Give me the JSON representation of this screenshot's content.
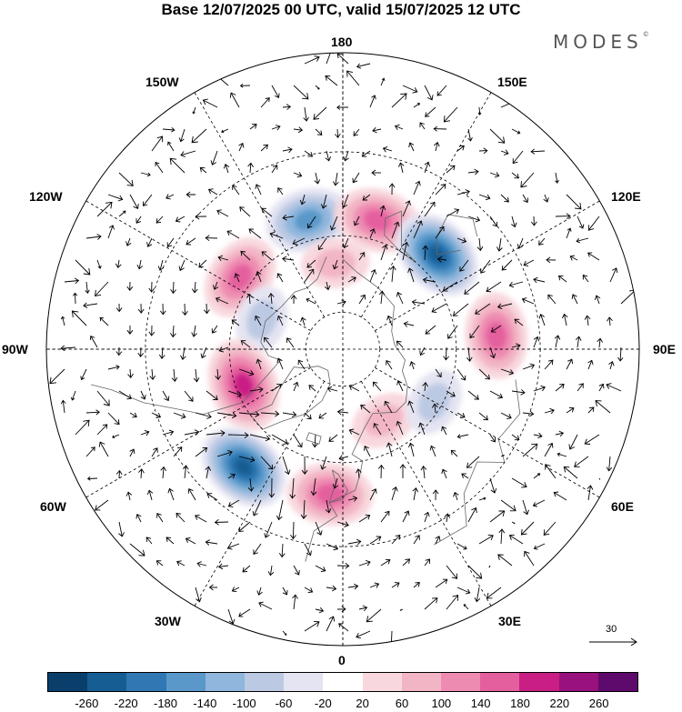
{
  "header": {
    "title": "Base 12/07/2025 00 UTC, valid 15/07/2025 12 UTC",
    "brand": "MODES",
    "brand_mark": "©"
  },
  "map": {
    "projection": "north polar stereographic",
    "longitude_labels": {
      "top": "180",
      "top_left": "150W",
      "top_right": "150E",
      "upper_left": "120W",
      "upper_right": "120E",
      "left": "90W",
      "right": "90E",
      "lower_left": "60W",
      "lower_right": "60E",
      "bottom_left": "30W",
      "bottom_right": "30E",
      "bottom": "0"
    },
    "anomaly_centers": [
      {
        "lon": -165,
        "lat": 55,
        "sign": "negative",
        "strength": "moderate"
      },
      {
        "lon": 165,
        "lat": 55,
        "sign": "positive",
        "strength": "moderate"
      },
      {
        "lon": 135,
        "lat": 55,
        "sign": "negative",
        "strength": "strong"
      },
      {
        "lon": 95,
        "lat": 50,
        "sign": "positive",
        "strength": "moderate"
      },
      {
        "lon": -125,
        "lat": 57,
        "sign": "positive",
        "strength": "moderate"
      },
      {
        "lon": -110,
        "lat": 67,
        "sign": "negative",
        "strength": "weak"
      },
      {
        "lon": -70,
        "lat": 62,
        "sign": "positive",
        "strength": "strong"
      },
      {
        "lon": -40,
        "lat": 50,
        "sign": "negative",
        "strength": "strong"
      },
      {
        "lon": -5,
        "lat": 52,
        "sign": "positive",
        "strength": "moderate"
      },
      {
        "lon": 30,
        "lat": 68,
        "sign": "positive",
        "strength": "weak"
      },
      {
        "lon": 60,
        "lat": 62,
        "sign": "negative",
        "strength": "weak"
      },
      {
        "lon": -175,
        "lat": 67,
        "sign": "positive",
        "strength": "weak"
      }
    ]
  },
  "vector_reference": {
    "label": "30"
  },
  "colorbar": {
    "colors": [
      "#0b3f6b",
      "#155d93",
      "#2f78b4",
      "#5a98c9",
      "#8fb6dc",
      "#bcc9e3",
      "#e4e4f2",
      "#ffffff",
      "#f8d8de",
      "#f2b5c5",
      "#ee8bb1",
      "#e45f9e",
      "#c91f84",
      "#98117d",
      "#5e0a6c"
    ],
    "ticks": [
      "-260",
      "-220",
      "-180",
      "-140",
      "-100",
      "-60",
      "-20",
      "20",
      "60",
      "100",
      "140",
      "180",
      "220",
      "260"
    ]
  }
}
